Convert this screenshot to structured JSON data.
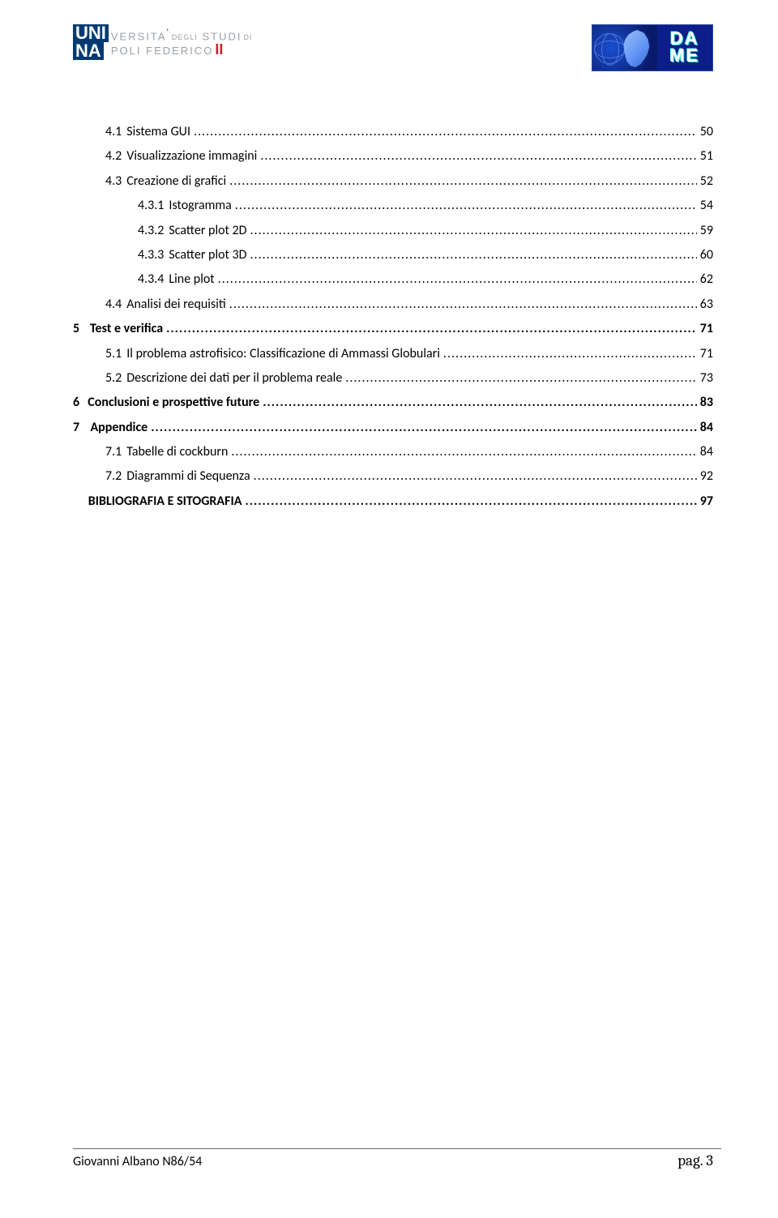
{
  "header": {
    "logo_left": {
      "uni": "UNI",
      "na": "NA",
      "line1_a": "VERSITA",
      "line1_apostrophe": "'",
      "line1_b": "DEGLI",
      "line1_c": "STUDI",
      "line1_d": "DI",
      "line2_a": "POLI",
      "line2_b": "FEDERICO",
      "line2_two": "II"
    },
    "logo_right": {
      "da": "DA",
      "me": "ME"
    }
  },
  "toc": [
    {
      "level": 2,
      "num": "4.1",
      "title": "Sistema GUI",
      "page": "50",
      "bold": false
    },
    {
      "level": 2,
      "num": "4.2",
      "title": "Visualizzazione immagini",
      "page": "51",
      "bold": false
    },
    {
      "level": 2,
      "num": "4.3",
      "title": "Creazione di grafici",
      "page": "52",
      "bold": false
    },
    {
      "level": 3,
      "num": "4.3.1",
      "title": "Istogramma",
      "page": "54",
      "bold": false
    },
    {
      "level": 3,
      "num": "4.3.2",
      "title": "Scatter plot 2D",
      "page": "59",
      "bold": false
    },
    {
      "level": 3,
      "num": "4.3.3",
      "title": "Scatter plot 3D",
      "page": "60",
      "bold": false
    },
    {
      "level": 3,
      "num": "4.3.4",
      "title": "Line plot",
      "page": "62",
      "bold": false
    },
    {
      "level": 2,
      "num": "4.4",
      "title": "Analisi dei requisiti",
      "page": "63",
      "bold": false
    },
    {
      "level": 1,
      "num": "5",
      "title": "Test e verifica",
      "page": "71",
      "bold": true
    },
    {
      "level": 2,
      "num": "5.1",
      "title": "Il problema astrofisico: Classificazione di Ammassi Globulari",
      "page": "71",
      "bold": false
    },
    {
      "level": 2,
      "num": "5.2",
      "title": "Descrizione dei dati per il problema reale",
      "page": "73",
      "bold": false
    },
    {
      "level": 1,
      "num": "6",
      "title": "Conclusioni e prospettive future",
      "page": "83",
      "bold": true
    },
    {
      "level": 1,
      "num": "7",
      "title": "Appendice",
      "page": "84",
      "bold": true
    },
    {
      "level": 2,
      "num": "7.1",
      "title": "Tabelle di cockburn",
      "page": "84",
      "bold": false
    },
    {
      "level": 2,
      "num": "7.2",
      "title": "Diagrammi di Sequenza",
      "page": "92",
      "bold": false
    },
    {
      "level": 1,
      "num": "",
      "title": "BIBLIOGRAFIA E SITOGRAFIA",
      "page": "97",
      "bold": true
    }
  ],
  "footer": {
    "author": "Giovanni Albano N86/54",
    "page_label": "pag. 3"
  }
}
